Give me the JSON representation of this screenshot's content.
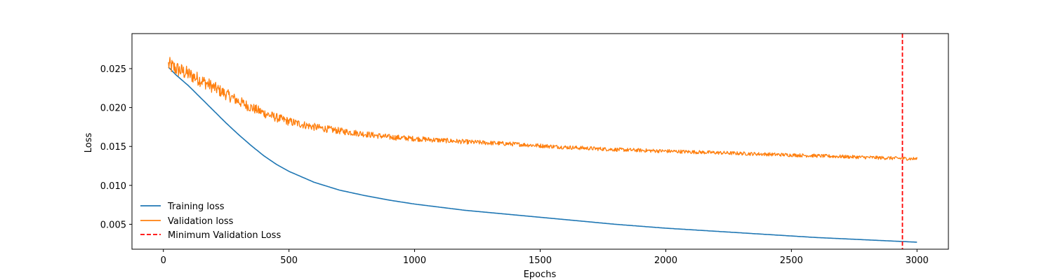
{
  "chart_data": {
    "type": "line",
    "title": "",
    "xlabel": "Epochs",
    "ylabel": "Loss",
    "xlim": [
      -125,
      3125
    ],
    "ylim": [
      0.0018,
      0.0295
    ],
    "xticks": [
      0,
      500,
      1000,
      1500,
      2000,
      2500,
      3000
    ],
    "xtick_labels": [
      "0",
      "500",
      "1000",
      "1500",
      "2000",
      "2500",
      "3000"
    ],
    "yticks": [
      0.005,
      0.01,
      0.015,
      0.02,
      0.025
    ],
    "ytick_labels": [
      "0.005",
      "0.010",
      "0.015",
      "0.020",
      "0.025"
    ],
    "grid": false,
    "legend_position": "lower-left",
    "series": [
      {
        "name": "Training loss",
        "color": "#1f77b4",
        "style": "solid",
        "x": [
          20,
          50,
          100,
          150,
          200,
          250,
          300,
          350,
          400,
          450,
          500,
          600,
          700,
          800,
          900,
          1000,
          1200,
          1400,
          1500,
          1600,
          1800,
          2000,
          2200,
          2400,
          2500,
          2600,
          2800,
          3000
        ],
        "y": [
          0.0252,
          0.0242,
          0.0228,
          0.0212,
          0.0196,
          0.018,
          0.0165,
          0.0151,
          0.0138,
          0.0127,
          0.0118,
          0.0104,
          0.0094,
          0.0087,
          0.0081,
          0.0076,
          0.0068,
          0.0062,
          0.0059,
          0.0056,
          0.005,
          0.0045,
          0.0041,
          0.0037,
          0.0035,
          0.0033,
          0.003,
          0.0027
        ]
      },
      {
        "name": "Validation loss",
        "color": "#ff7f0e",
        "style": "solid",
        "x": [
          20,
          50,
          100,
          150,
          200,
          250,
          300,
          350,
          400,
          450,
          500,
          600,
          700,
          800,
          900,
          1000,
          1200,
          1400,
          1500,
          1600,
          1800,
          2000,
          2200,
          2400,
          2500,
          2600,
          2800,
          3000
        ],
        "y": [
          0.0255,
          0.025,
          0.0243,
          0.0235,
          0.0226,
          0.0217,
          0.0208,
          0.02,
          0.0193,
          0.0187,
          0.0182,
          0.0175,
          0.017,
          0.0166,
          0.0162,
          0.016,
          0.0156,
          0.0153,
          0.0151,
          0.0149,
          0.0146,
          0.0144,
          0.0142,
          0.014,
          0.0139,
          0.0138,
          0.0136,
          0.0134
        ]
      }
    ],
    "vline": {
      "name": "Minimum Validation Loss",
      "x": 2942,
      "color": "#ff0000",
      "style": "dashed"
    }
  }
}
